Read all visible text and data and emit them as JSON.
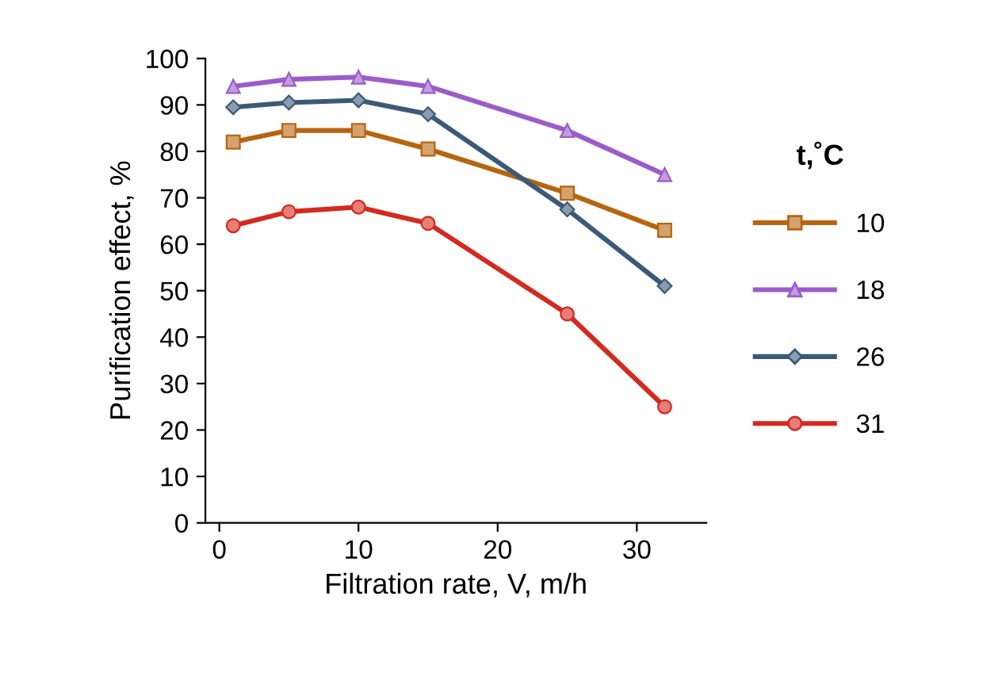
{
  "chart_data": {
    "type": "line",
    "xlabel": "Filtration rate, V, m/h",
    "ylabel": "Purification effect, %",
    "legend_title": "t,˚C",
    "x": [
      1,
      5,
      10,
      15,
      25,
      32
    ],
    "series": [
      {
        "name": "10",
        "color": "#b8640f",
        "marker": "square",
        "values": [
          82,
          84.5,
          84.5,
          80.5,
          71,
          63
        ]
      },
      {
        "name": "18",
        "color": "#9b5cc9",
        "marker": "triangle",
        "values": [
          94,
          95.5,
          96,
          94,
          84.5,
          75
        ]
      },
      {
        "name": "26",
        "color": "#3c5a78",
        "marker": "diamond",
        "values": [
          89.5,
          90.5,
          91,
          88,
          67.5,
          51
        ]
      },
      {
        "name": "31",
        "color": "#d42a1e",
        "marker": "circle",
        "values": [
          64,
          67,
          68,
          64.5,
          45,
          25
        ]
      }
    ],
    "xlim": [
      -1,
      35
    ],
    "xticks": [
      0,
      10,
      20,
      30
    ],
    "ylim": [
      0,
      100
    ],
    "yticks": [
      0,
      10,
      20,
      30,
      40,
      50,
      60,
      70,
      80,
      90,
      100
    ],
    "grid": false,
    "legend": "right"
  }
}
